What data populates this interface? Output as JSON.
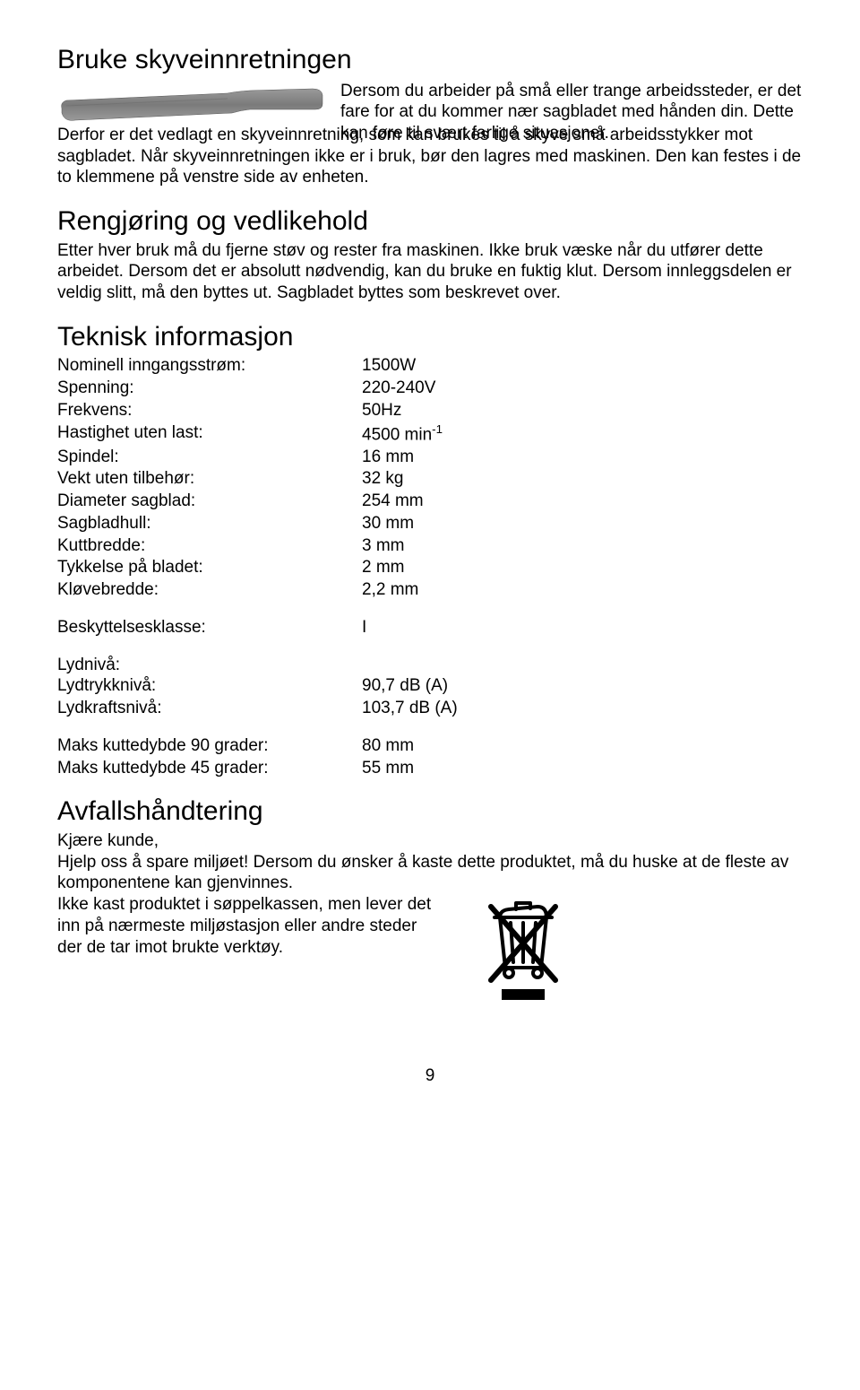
{
  "section_push": {
    "heading": "Bruke skyveinnretningen",
    "intro_right": "Dersom du arbeider på små eller trange arbeidssteder, er det fare for at du kommer nær sagbladet med hånden din. Dette kan føre til svært farlige situasjoner.",
    "intro_cont": "Derfor er det vedlagt en skyveinnretning, som kan brukes til å skyve små arbeidsstykker mot sagbladet. Når skyveinnretningen ikke er i bruk, bør den lagres med maskinen. Den kan festes i de to klemmene på venstre side av enheten."
  },
  "section_clean": {
    "heading": "Rengjøring og vedlikehold",
    "body": "Etter hver bruk må du fjerne støv og rester fra maskinen. Ikke bruk væske når du utfører dette arbeidet. Dersom det er absolutt nødvendig, kan du bruke en fuktig klut. Dersom innleggsdelen er veldig slitt, må den byttes ut. Sagbladet byttes som beskrevet over."
  },
  "section_tech": {
    "heading": "Teknisk informasjon",
    "rows1": [
      {
        "label": "Nominell inngangsstrøm:",
        "value": "1500W"
      },
      {
        "label": "Spenning:",
        "value": "220-240V"
      },
      {
        "label": "Frekvens:",
        "value": "50Hz"
      },
      {
        "label": "Hastighet uten last:",
        "value_html": "4500 min<sup>-1</sup>"
      },
      {
        "label": "Spindel:",
        "value": "16 mm"
      },
      {
        "label": "Vekt uten tilbehør:",
        "value": "32 kg"
      },
      {
        "label": "Diameter sagblad:",
        "value": "254 mm"
      },
      {
        "label": "Sagbladhull:",
        "value": "30 mm"
      },
      {
        "label": "Kuttbredde:",
        "value": "3 mm"
      },
      {
        "label": "Tykkelse på bladet:",
        "value": "2 mm"
      },
      {
        "label": "Kløvebredde:",
        "value": "2,2 mm"
      }
    ],
    "rows2": [
      {
        "label": "Beskyttelsesklasse:",
        "value": "I"
      }
    ],
    "noise_heading": "Lydnivå:",
    "rows3": [
      {
        "label": "Lydtrykknivå:",
        "value": "90,7 dB (A)"
      },
      {
        "label": "Lydkraftsnivå:",
        "value": "103,7 dB (A)"
      }
    ],
    "rows4": [
      {
        "label": "Maks kuttedybde 90 grader:",
        "value": "80 mm"
      },
      {
        "label": "Maks kuttedybde 45 grader:",
        "value": "55 mm"
      }
    ]
  },
  "section_waste": {
    "heading": "Avfallshåndtering",
    "line1": "Kjære kunde,",
    "line2": "Hjelp oss å spare miljøet! Dersom du ønsker å kaste dette produktet, må du huske at de fleste av komponentene kan gjenvinnes.",
    "line3": "Ikke kast produktet i søppelkassen, men lever det inn på nærmeste miljøstasjon eller andre steder der de tar imot brukte verktøy."
  },
  "page_number": "9"
}
